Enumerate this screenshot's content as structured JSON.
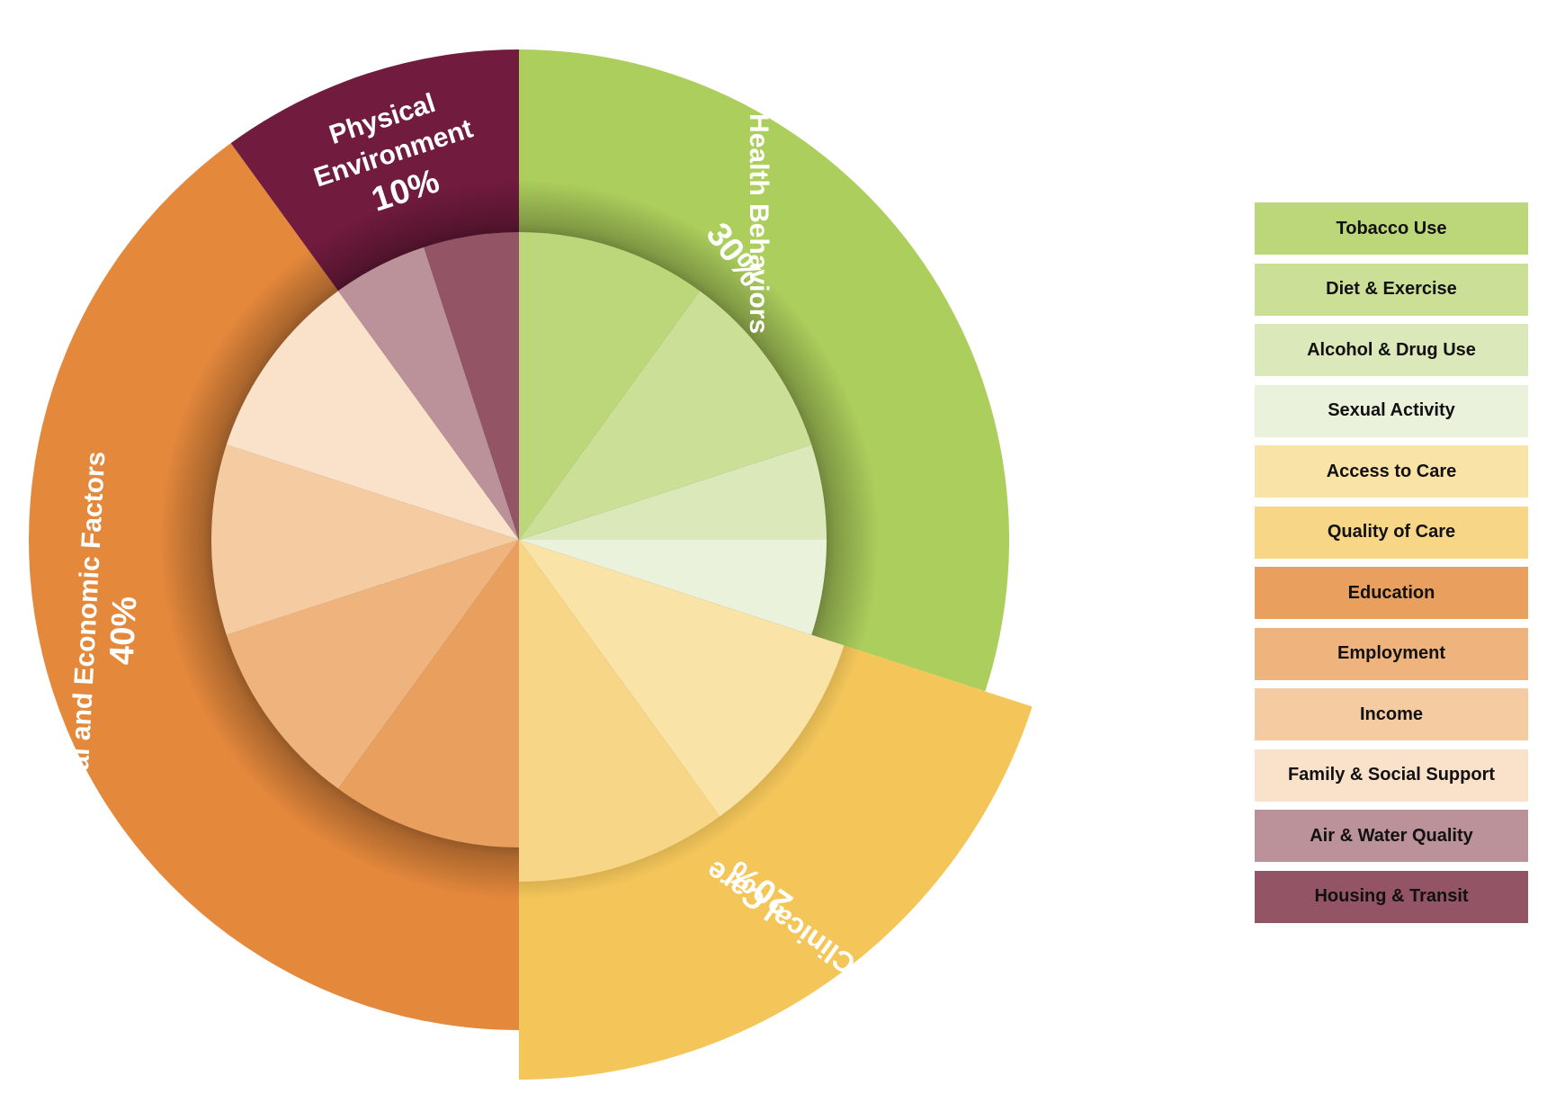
{
  "chart_data": {
    "type": "pie",
    "title": "",
    "outer_ring": [
      {
        "name": "Health Behaviors",
        "label": "Health Behaviors",
        "pct_label": "30%",
        "value": 30,
        "color": "#acce5c"
      },
      {
        "name": "Clinical Care",
        "label": "Clinical Care",
        "pct_label": "20%",
        "value": 20,
        "color": "#f4c65a"
      },
      {
        "name": "Social and Economic Factors",
        "label": "Social and Economic Factors",
        "pct_label": "40%",
        "value": 40,
        "color": "#e4883c"
      },
      {
        "name": "Physical Environment",
        "label_lines": [
          "Physical",
          "Environment"
        ],
        "pct_label": "10%",
        "value": 10,
        "color": "#711b3e"
      }
    ],
    "inner_ring": [
      {
        "name": "Tobacco Use",
        "value": 10,
        "color": "#bcd67a"
      },
      {
        "name": "Diet & Exercise",
        "value": 10,
        "color": "#cbdf97"
      },
      {
        "name": "Alcohol & Drug Use",
        "value": 5,
        "color": "#dbe8b9"
      },
      {
        "name": "Sexual Activity",
        "value": 5,
        "color": "#ebf2db"
      },
      {
        "name": "Access to Care",
        "value": 10,
        "color": "#fae3a7"
      },
      {
        "name": "Quality of Care",
        "value": 10,
        "color": "#f7d687"
      },
      {
        "name": "Education",
        "value": 10,
        "color": "#e99f5e"
      },
      {
        "name": "Employment",
        "value": 10,
        "color": "#efb47e"
      },
      {
        "name": "Income",
        "value": 10,
        "color": "#f5cba2"
      },
      {
        "name": "Family & Social Support",
        "value": 10,
        "color": "#fae1ca"
      },
      {
        "name": "Air & Water Quality",
        "value": 5,
        "color": "#bb929a"
      },
      {
        "name": "Housing & Transit",
        "value": 5,
        "color": "#935465"
      }
    ],
    "legend": [
      {
        "label": "Tobacco Use",
        "color": "#bcd67a"
      },
      {
        "label": "Diet & Exercise",
        "color": "#cbdf97"
      },
      {
        "label": "Alcohol & Drug Use",
        "color": "#dbe8b9"
      },
      {
        "label": "Sexual Activity",
        "color": "#ebf2db"
      },
      {
        "label": "Access to Care",
        "color": "#fae3a7"
      },
      {
        "label": "Quality of Care",
        "color": "#f7d687"
      },
      {
        "label": "Education",
        "color": "#e99f5e"
      },
      {
        "label": "Employment",
        "color": "#efb47e"
      },
      {
        "label": "Income",
        "color": "#f5cba2"
      },
      {
        "label": "Family & Social Support",
        "color": "#fae1ca"
      },
      {
        "label": "Air & Water Quality",
        "color": "#bb929a"
      },
      {
        "label": "Housing & Transit",
        "color": "#935465"
      }
    ],
    "legend_placement": "right"
  }
}
